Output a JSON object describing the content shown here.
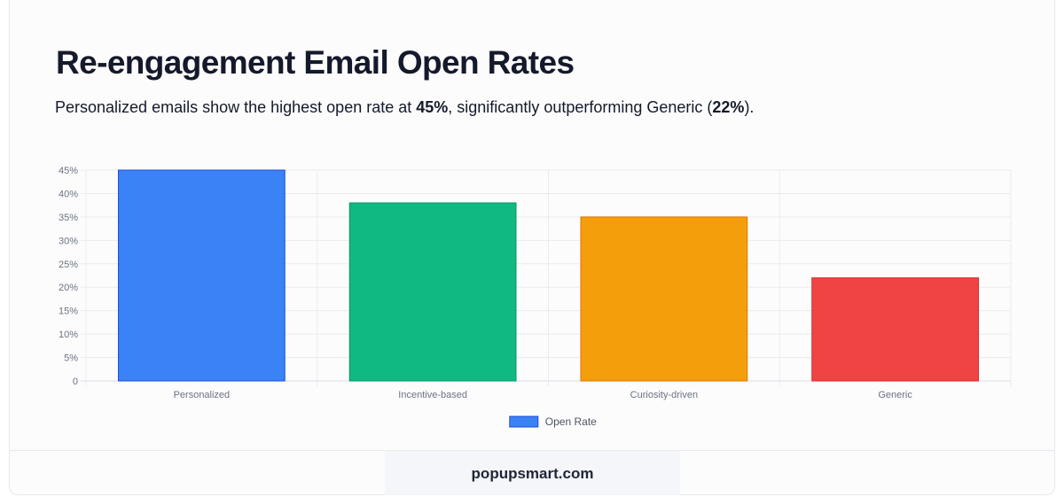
{
  "header": {
    "title": "Re-engagement Email Open Rates",
    "subtitle_parts": [
      {
        "text": "Personalized emails show the highest open rate at ",
        "bold": false
      },
      {
        "text": "45%",
        "bold": true
      },
      {
        "text": ", significantly outperforming Generic (",
        "bold": false
      },
      {
        "text": "22%",
        "bold": true
      },
      {
        "text": ").",
        "bold": false
      }
    ]
  },
  "chart_data": {
    "type": "bar",
    "categories": [
      "Personalized",
      "Incentive-based",
      "Curiosity-driven",
      "Generic"
    ],
    "series": [
      {
        "name": "Open Rate",
        "values": [
          45,
          38,
          35,
          22
        ]
      }
    ],
    "colors": [
      "#3b82f6",
      "#10b981",
      "#f59e0b",
      "#ef4444"
    ],
    "border_colors": [
      "#1d4ed8",
      "#059669",
      "#d97706",
      "#dc2626"
    ],
    "ylim": [
      0,
      45
    ],
    "yticks": [
      0,
      5,
      10,
      15,
      20,
      25,
      30,
      35,
      40,
      45
    ],
    "ytick_labels": [
      "0",
      "5%",
      "10%",
      "15%",
      "20%",
      "25%",
      "30%",
      "35%",
      "40%",
      "45%"
    ],
    "grid": true,
    "legend": "bottom-center"
  },
  "footer": {
    "brand": "popupsmart.com"
  }
}
